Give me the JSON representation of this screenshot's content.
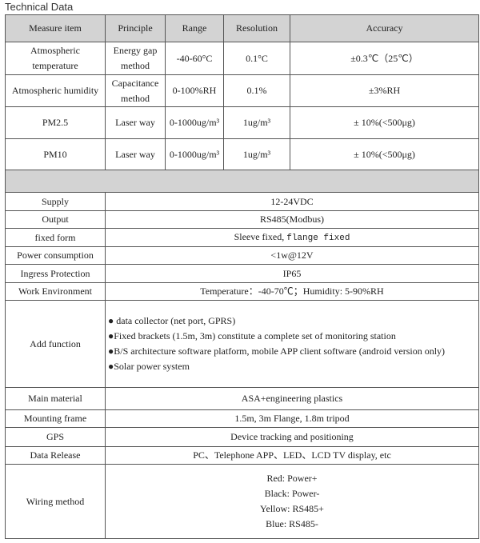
{
  "title": "Technical Data",
  "headers": [
    "Measure item",
    "Principle",
    "Range",
    "Resolution",
    "Accuracy"
  ],
  "measure_rows": [
    {
      "item": "Atmospheric temperature",
      "principle": "Energy gap method",
      "range": "-40-60°C",
      "resolution": "0.1°C",
      "accuracy": "±0.3℃（25℃）"
    },
    {
      "item": "Atmospheric humidity",
      "principle": "Capacitance method",
      "range": "0-100%RH",
      "resolution": "0.1%",
      "accuracy": "±3%RH"
    },
    {
      "item": "PM2.5",
      "principle": "Laser way",
      "range": "0-1000ug/m³",
      "resolution": "1ug/m³",
      "accuracy": "± 10%(<500μg)"
    },
    {
      "item": "PM10",
      "principle": "Laser way",
      "range": "0-1000ug/m³",
      "resolution": "1ug/m³",
      "accuracy": "± 10%(<500μg)"
    }
  ],
  "specs": {
    "supply": {
      "label": "Supply",
      "value": "12-24VDC"
    },
    "output": {
      "label": "Output",
      "value": "RS485(Modbus)"
    },
    "fixed_form": {
      "label": "fixed form",
      "value_a": "Sleeve fixed,",
      "value_b": "flange fixed"
    },
    "power": {
      "label": "Power consumption",
      "value": "<1w@12V"
    },
    "ingress": {
      "label": "Ingress Protection",
      "value": "IP65"
    },
    "environment": {
      "label": "Work Environment",
      "value": "Temperature：-40-70℃；Humidity: 5-90%RH"
    },
    "add_function": {
      "label": "Add function",
      "items": [
        "● data collector (net port, GPRS)",
        "●Fixed brackets (1.5m, 3m) constitute a complete set of monitoring station",
        "●B/S architecture software platform, mobile APP client software (android version only)",
        "●Solar power system"
      ]
    },
    "material": {
      "label": "Main material",
      "value": "ASA+engineering plastics"
    },
    "mounting": {
      "label": "Mounting frame",
      "value": "1.5m, 3m Flange, 1.8m tripod"
    },
    "gps": {
      "label": "GPS",
      "value": "Device tracking and positioning"
    },
    "release": {
      "label": "Data Release",
      "value": "PC、Telephone APP、LED、LCD TV display, etc"
    },
    "wiring": {
      "label": "Wiring method",
      "items": [
        "Red: Power+",
        "Black: Power-",
        "Yellow: RS485+",
        "Blue: RS485-"
      ]
    }
  }
}
